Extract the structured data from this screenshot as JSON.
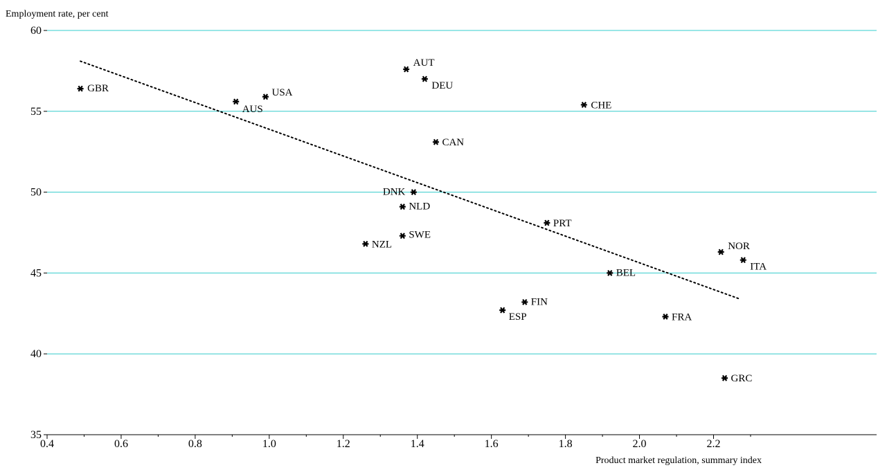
{
  "chart_data": {
    "type": "scatter",
    "title": "",
    "ylabel": "Employment rate, per cent",
    "xlabel": "Product market regulation, summary index",
    "xlim": [
      0.4,
      2.4
    ],
    "ylim": [
      35,
      60
    ],
    "xticks": [
      "0.4",
      "0.6",
      "0.8",
      "1.0",
      "1.2",
      "1.4",
      "1.6",
      "1.8",
      "2.0",
      "2.2"
    ],
    "yticks": [
      "35",
      "40",
      "45",
      "50",
      "55",
      "60"
    ],
    "grid": "horizontal",
    "marker": "asterisk",
    "gridline_color": "#33cccc",
    "points": [
      {
        "label": "GBR",
        "x": 0.49,
        "y": 56.4
      },
      {
        "label": "AUS",
        "x": 0.91,
        "y": 55.6
      },
      {
        "label": "USA",
        "x": 0.99,
        "y": 55.9
      },
      {
        "label": "AUT",
        "x": 1.37,
        "y": 57.6
      },
      {
        "label": "DEU",
        "x": 1.42,
        "y": 57.0
      },
      {
        "label": "CHE",
        "x": 1.85,
        "y": 55.4
      },
      {
        "label": "CAN",
        "x": 1.45,
        "y": 53.1
      },
      {
        "label": "DNK",
        "x": 1.39,
        "y": 50.0
      },
      {
        "label": "NLD",
        "x": 1.36,
        "y": 49.1
      },
      {
        "label": "PRT",
        "x": 1.75,
        "y": 48.1
      },
      {
        "label": "NZL",
        "x": 1.26,
        "y": 46.8
      },
      {
        "label": "SWE",
        "x": 1.36,
        "y": 47.3
      },
      {
        "label": "NOR",
        "x": 2.22,
        "y": 46.3
      },
      {
        "label": "ITA",
        "x": 2.28,
        "y": 45.8
      },
      {
        "label": "BEL",
        "x": 1.92,
        "y": 45.0
      },
      {
        "label": "FIN",
        "x": 1.69,
        "y": 43.2
      },
      {
        "label": "ESP",
        "x": 1.63,
        "y": 42.7
      },
      {
        "label": "FRA",
        "x": 2.07,
        "y": 42.3
      },
      {
        "label": "GRC",
        "x": 2.23,
        "y": 38.5
      }
    ],
    "trendline": {
      "x": [
        0.49,
        2.27
      ],
      "y": [
        58.1,
        43.4
      ],
      "style": "dotted"
    }
  }
}
